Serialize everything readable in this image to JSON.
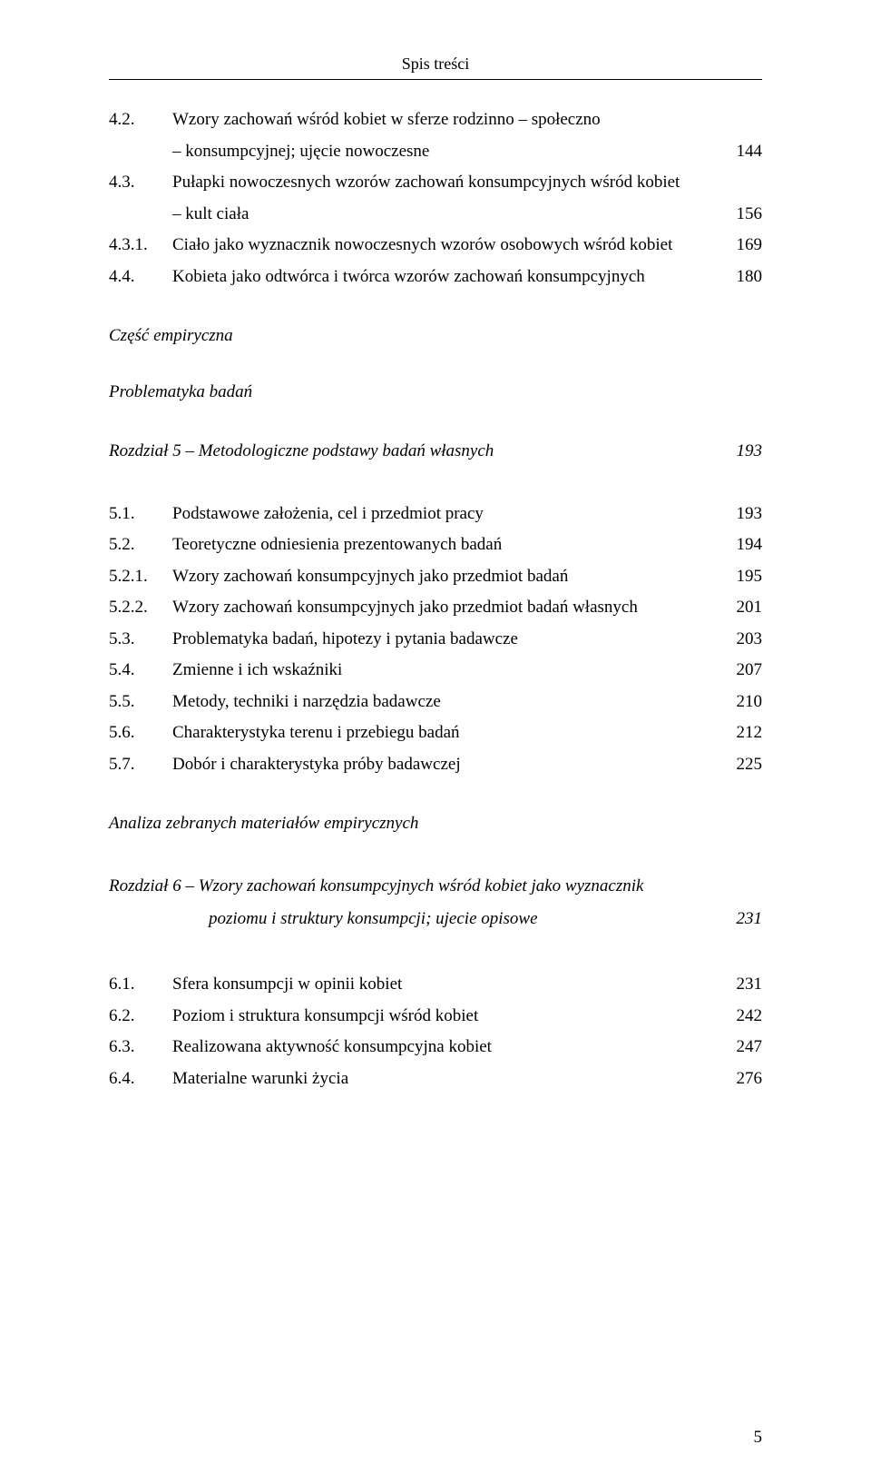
{
  "running_head": "Spis treści",
  "page_number": "5",
  "entries_a": [
    {
      "num": "4.2.",
      "title": "Wzory zachowań wśród kobiet w sferze rodzinno – społeczno",
      "cont": "– konsumpcyjnej; ujęcie nowoczesne",
      "page": "144"
    },
    {
      "num": "4.3.",
      "title": "Pułapki nowoczesnych wzorów zachowań konsumpcyjnych wśród kobiet",
      "cont": "– kult ciała",
      "page": "156"
    },
    {
      "num": "4.3.1.",
      "title": "Ciało jako wyznacznik nowoczesnych wzorów osobowych wśród kobiet",
      "page": "169"
    },
    {
      "num": "4.4.",
      "title": "Kobieta jako odtwórca i twórca wzorów zachowań konsumpcyjnych",
      "page": "180"
    }
  ],
  "part_emp": "Część empiryczna",
  "prob_badan": "Problematyka badań",
  "chapter5": {
    "title": "Rozdział 5 – Metodologiczne podstawy badań własnych",
    "page": "193"
  },
  "entries_b": [
    {
      "num": "5.1.",
      "title": "Podstawowe założenia, cel i przedmiot pracy",
      "page": "193"
    },
    {
      "num": "5.2.",
      "title": "Teoretyczne odniesienia prezentowanych badań",
      "page": "194"
    },
    {
      "num": "5.2.1.",
      "title": "Wzory zachowań konsumpcyjnych jako przedmiot badań",
      "page": "195"
    },
    {
      "num": "5.2.2.",
      "title": "Wzory zachowań konsumpcyjnych jako przedmiot badań własnych",
      "page": "201"
    },
    {
      "num": "5.3.",
      "title": "Problematyka badań, hipotezy i pytania badawcze",
      "page": "203"
    },
    {
      "num": "5.4.",
      "title": "Zmienne i ich wskaźniki",
      "page": "207"
    },
    {
      "num": "5.5.",
      "title": "Metody, techniki i narzędzia badawcze",
      "page": "210"
    },
    {
      "num": "5.6.",
      "title": "Charakterystyka terenu i przebiegu badań",
      "page": "212"
    },
    {
      "num": "5.7.",
      "title": "Dobór i charakterystyka próby badawczej",
      "page": "225"
    }
  ],
  "analiza": "Analiza zebranych materiałów empirycznych",
  "chapter6": {
    "line1": "Rozdział 6 – Wzory zachowań konsumpcyjnych wśród kobiet jako wyznacznik",
    "line2": "poziomu i struktury konsumpcji; ujecie opisowe",
    "page": "231"
  },
  "entries_c": [
    {
      "num": "6.1.",
      "title": "Sfera konsumpcji w opinii kobiet",
      "page": "231"
    },
    {
      "num": "6.2.",
      "title": "Poziom i struktura konsumpcji wśród kobiet",
      "page": "242"
    },
    {
      "num": "6.3.",
      "title": "Realizowana aktywność konsumpcyjna kobiet",
      "page": "247"
    },
    {
      "num": "6.4.",
      "title": "Materialne warunki życia",
      "page": "276"
    }
  ]
}
